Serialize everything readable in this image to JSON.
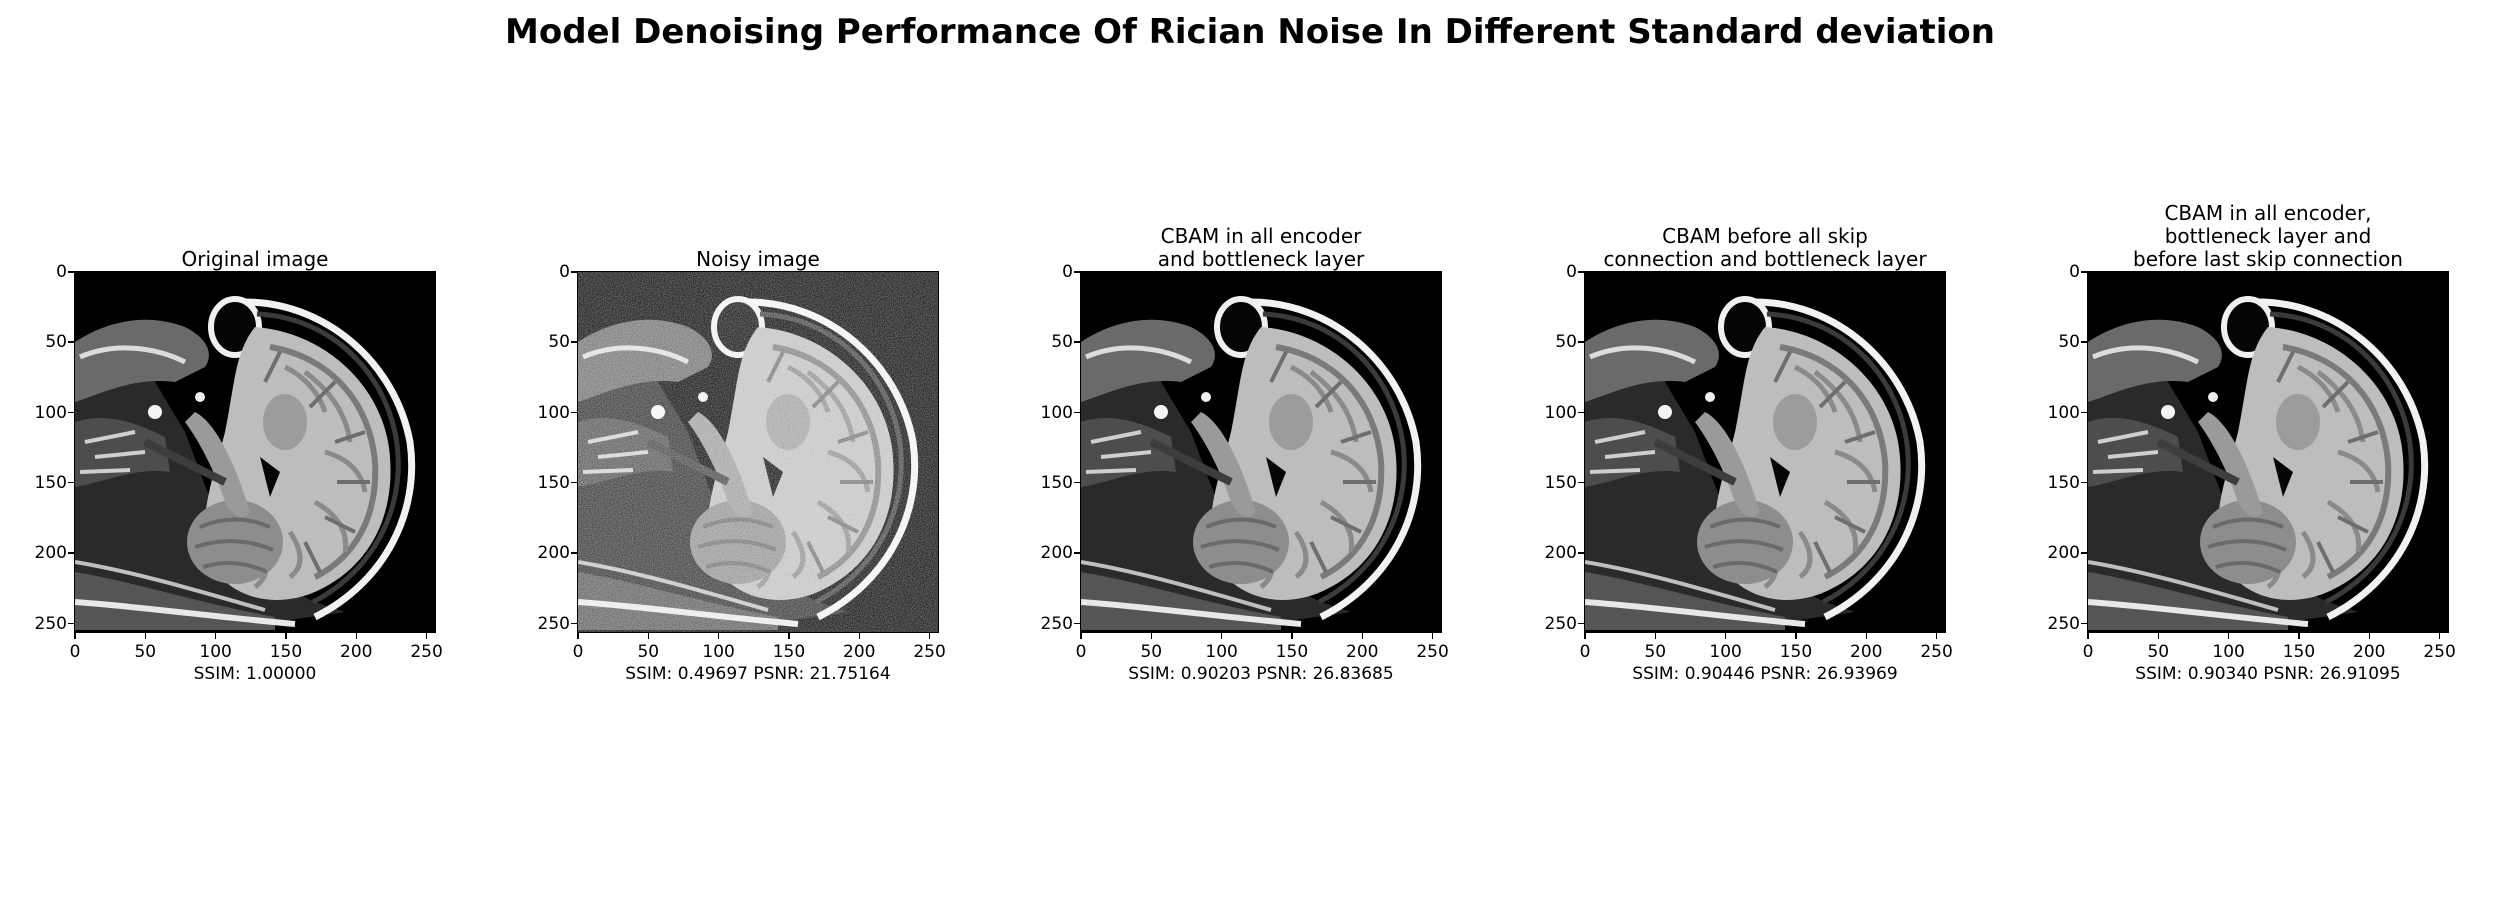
{
  "figure": {
    "title": "Model Denoising Performance Of Rician Noise In Different Standard deviation"
  },
  "axis": {
    "xticks": [
      "0",
      "50",
      "100",
      "150",
      "200",
      "250"
    ],
    "yticks": [
      "0",
      "50",
      "100",
      "150",
      "200",
      "250"
    ],
    "range": [
      0,
      256
    ]
  },
  "panels": [
    {
      "title": "Original image",
      "metric": "SSIM: 1.00000",
      "noisy": false
    },
    {
      "title": "Noisy image",
      "metric": "SSIM: 0.49697 PSNR: 21.75164",
      "noisy": true
    },
    {
      "title": "CBAM in all encoder\nand bottleneck layer",
      "metric": "SSIM: 0.90203 PSNR: 26.83685",
      "noisy": false
    },
    {
      "title": "CBAM before all skip\nconnection and bottleneck layer",
      "metric": "SSIM: 0.90446 PSNR: 26.93969",
      "noisy": false
    },
    {
      "title": "CBAM in all encoder,\nbottleneck layer and\nbefore last skip connection",
      "metric": "SSIM: 0.90340 PSNR: 26.91095",
      "noisy": false
    }
  ]
}
